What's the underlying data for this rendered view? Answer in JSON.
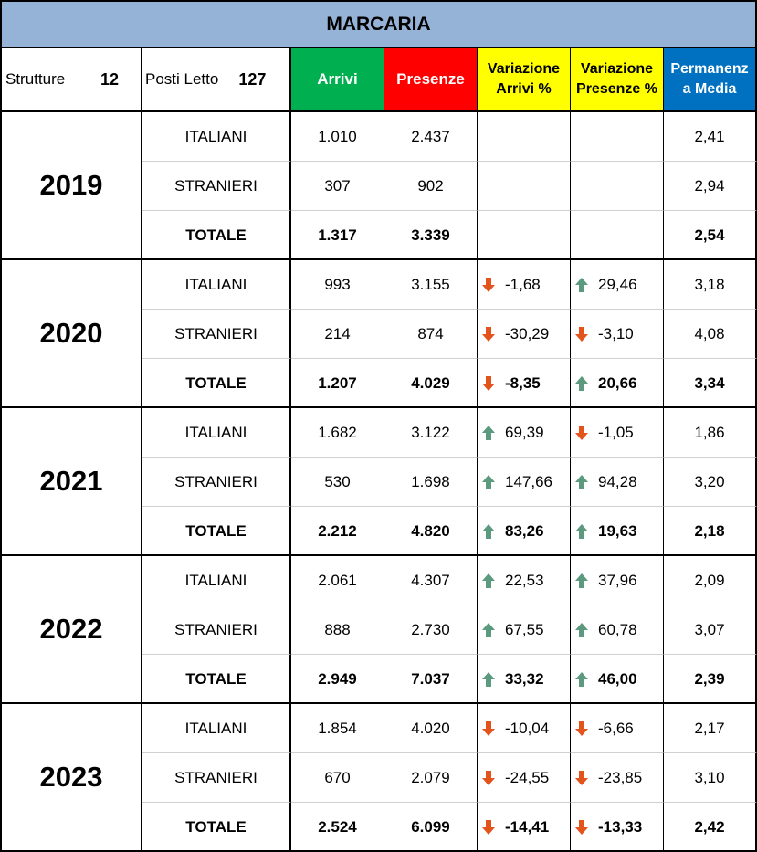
{
  "title": "MARCARIA",
  "header": {
    "strutture_label": "Strutture",
    "strutture_value": "12",
    "posti_label": "Posti Letto",
    "posti_value": "127",
    "arrivi": "Arrivi",
    "presenze": "Presenze",
    "var_arrivi_l1": "Variazione",
    "var_arrivi_l2": "Arrivi %",
    "var_presenze_l1": "Variazione",
    "var_presenze_l2": "Presenze %",
    "permanenza_l1": "Permanenz",
    "permanenza_l2": "a Media"
  },
  "colors": {
    "up": "#5b9a7e",
    "down": "#e2541b"
  },
  "years": [
    {
      "year": "2019",
      "rows": [
        {
          "label": "ITALIANI",
          "arrivi": "1.010",
          "presenze": "2.437",
          "var_arrivi": "",
          "var_arrivi_dir": "",
          "var_presenze": "",
          "var_presenze_dir": "",
          "permanenza": "2,41"
        },
        {
          "label": "STRANIERI",
          "arrivi": "307",
          "presenze": "902",
          "var_arrivi": "",
          "var_arrivi_dir": "",
          "var_presenze": "",
          "var_presenze_dir": "",
          "permanenza": "2,94"
        },
        {
          "label": "TOTALE",
          "arrivi": "1.317",
          "presenze": "3.339",
          "var_arrivi": "",
          "var_arrivi_dir": "",
          "var_presenze": "",
          "var_presenze_dir": "",
          "permanenza": "2,54"
        }
      ]
    },
    {
      "year": "2020",
      "rows": [
        {
          "label": "ITALIANI",
          "arrivi": "993",
          "presenze": "3.155",
          "var_arrivi": "-1,68",
          "var_arrivi_dir": "down",
          "var_presenze": "29,46",
          "var_presenze_dir": "up",
          "permanenza": "3,18"
        },
        {
          "label": "STRANIERI",
          "arrivi": "214",
          "presenze": "874",
          "var_arrivi": "-30,29",
          "var_arrivi_dir": "down",
          "var_presenze": "-3,10",
          "var_presenze_dir": "down",
          "permanenza": "4,08"
        },
        {
          "label": "TOTALE",
          "arrivi": "1.207",
          "presenze": "4.029",
          "var_arrivi": "-8,35",
          "var_arrivi_dir": "down",
          "var_presenze": "20,66",
          "var_presenze_dir": "up",
          "permanenza": "3,34"
        }
      ]
    },
    {
      "year": "2021",
      "rows": [
        {
          "label": "ITALIANI",
          "arrivi": "1.682",
          "presenze": "3.122",
          "var_arrivi": "69,39",
          "var_arrivi_dir": "up",
          "var_presenze": "-1,05",
          "var_presenze_dir": "down",
          "permanenza": "1,86"
        },
        {
          "label": "STRANIERI",
          "arrivi": "530",
          "presenze": "1.698",
          "var_arrivi": "147,66",
          "var_arrivi_dir": "up",
          "var_presenze": "94,28",
          "var_presenze_dir": "up",
          "permanenza": "3,20"
        },
        {
          "label": "TOTALE",
          "arrivi": "2.212",
          "presenze": "4.820",
          "var_arrivi": "83,26",
          "var_arrivi_dir": "up",
          "var_presenze": "19,63",
          "var_presenze_dir": "up",
          "permanenza": "2,18"
        }
      ]
    },
    {
      "year": "2022",
      "rows": [
        {
          "label": "ITALIANI",
          "arrivi": "2.061",
          "presenze": "4.307",
          "var_arrivi": "22,53",
          "var_arrivi_dir": "up",
          "var_presenze": "37,96",
          "var_presenze_dir": "up",
          "permanenza": "2,09"
        },
        {
          "label": "STRANIERI",
          "arrivi": "888",
          "presenze": "2.730",
          "var_arrivi": "67,55",
          "var_arrivi_dir": "up",
          "var_presenze": "60,78",
          "var_presenze_dir": "up",
          "permanenza": "3,07"
        },
        {
          "label": "TOTALE",
          "arrivi": "2.949",
          "presenze": "7.037",
          "var_arrivi": "33,32",
          "var_arrivi_dir": "up",
          "var_presenze": "46,00",
          "var_presenze_dir": "up",
          "permanenza": "2,39"
        }
      ]
    },
    {
      "year": "2023",
      "rows": [
        {
          "label": "ITALIANI",
          "arrivi": "1.854",
          "presenze": "4.020",
          "var_arrivi": "-10,04",
          "var_arrivi_dir": "down",
          "var_presenze": "-6,66",
          "var_presenze_dir": "down",
          "permanenza": "2,17"
        },
        {
          "label": "STRANIERI",
          "arrivi": "670",
          "presenze": "2.079",
          "var_arrivi": "-24,55",
          "var_arrivi_dir": "down",
          "var_presenze": "-23,85",
          "var_presenze_dir": "down",
          "permanenza": "3,10"
        },
        {
          "label": "TOTALE",
          "arrivi": "2.524",
          "presenze": "6.099",
          "var_arrivi": "-14,41",
          "var_arrivi_dir": "down",
          "var_presenze": "-13,33",
          "var_presenze_dir": "down",
          "permanenza": "2,42"
        }
      ]
    }
  ]
}
